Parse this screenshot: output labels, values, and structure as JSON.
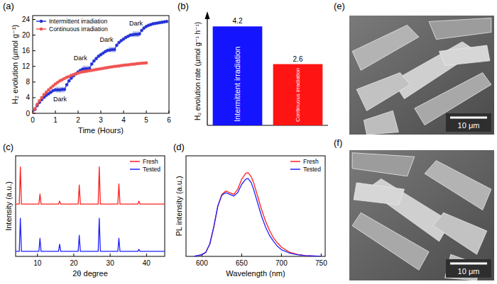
{
  "chart_data": [
    {
      "type": "line",
      "title": "(a)",
      "x_label": "Time (Hours)",
      "y_label": "H₂ evolution (μmol g⁻¹)",
      "x": [
        0,
        0.1,
        0.2,
        0.3,
        0.4,
        0.5,
        0.6,
        0.7,
        0.8,
        0.9,
        1,
        1.1,
        1.2,
        1.3,
        1.4,
        1.5,
        1.6,
        1.7,
        1.8,
        1.9,
        2,
        2.1,
        2.2,
        2.3,
        2.4,
        2.5,
        2.6,
        2.7,
        2.8,
        2.9,
        3,
        3.1,
        3.2,
        3.3,
        3.4,
        3.5,
        3.6,
        3.7,
        3.8,
        3.9,
        4,
        4.1,
        4.2,
        4.3,
        4.4,
        4.5,
        4.6,
        4.7,
        4.8,
        4.9,
        5,
        5.1,
        5.2,
        5.3,
        5.4,
        5.5,
        5.6,
        5.7,
        5.8,
        5.9
      ],
      "series": [
        {
          "name": "Intermittent irradiation",
          "color": "#2433d6",
          "marker": "circle",
          "values": [
            0,
            1.0,
            2.0,
            2.8,
            3.5,
            4.1,
            4.6,
            5.0,
            5.4,
            5.8,
            6.0,
            6.0,
            6.0,
            6.1,
            6.1,
            7.3,
            8.3,
            9.0,
            9.6,
            10.1,
            10.6,
            11.0,
            11.3,
            11.4,
            11.4,
            11.5,
            12.6,
            13.4,
            14.0,
            14.6,
            15.0,
            15.4,
            15.8,
            16.1,
            16.2,
            16.3,
            16.3,
            17.4,
            18.1,
            18.6,
            19.0,
            19.4,
            19.7,
            20.0,
            20.1,
            20.2,
            20.2,
            20.3,
            21.2,
            21.8,
            22.2,
            22.5,
            22.7,
            22.9,
            23.0,
            23.1,
            23.2,
            23.3,
            23.4,
            23.5
          ]
        },
        {
          "name": "Continuous irradiation",
          "color": "#ef5350",
          "marker": "circle",
          "values": [
            0,
            1.2,
            2.3,
            3.2,
            4.0,
            4.8,
            5.4,
            6.0,
            6.5,
            7.0,
            7.5,
            7.9,
            8.3,
            8.6,
            8.9,
            9.2,
            9.4,
            9.7,
            9.9,
            10.1,
            10.3,
            10.5,
            10.6,
            10.7,
            10.8,
            10.9,
            11.0,
            11.1,
            11.2,
            11.3,
            11.4,
            11.5,
            11.6,
            11.7,
            11.8,
            11.9,
            12.0,
            12.05,
            12.1,
            12.2,
            12.3,
            12.35,
            12.4,
            12.5,
            12.55,
            12.6,
            12.7,
            12.75,
            12.8,
            12.85,
            12.9,
            null,
            null,
            null,
            null,
            null,
            null,
            null,
            null,
            null
          ]
        }
      ],
      "xlim": [
        0,
        6
      ],
      "xticks": [
        0,
        1,
        2,
        3,
        4,
        5,
        6
      ],
      "ylim": [
        0,
        25
      ],
      "yticks": [
        0,
        4,
        8,
        12,
        16,
        20,
        24
      ],
      "legend": "upper left",
      "grid": false,
      "annotations": [
        {
          "text": "Dark",
          "x": 1.2,
          "y": 3.0
        },
        {
          "text": "Dark",
          "x": 2.1,
          "y": 13.6
        },
        {
          "text": "Dark",
          "x": 3.25,
          "y": 18.3
        },
        {
          "text": "Dark",
          "x": 4.55,
          "y": 22.4
        }
      ],
      "shaded": [
        {
          "x": [
            1.0,
            1.4
          ],
          "y": [
            5.3,
            6.8
          ]
        },
        {
          "x": [
            2.2,
            2.5
          ],
          "y": [
            10.7,
            12.2
          ]
        },
        {
          "x": [
            3.35,
            3.65
          ],
          "y": [
            15.6,
            17.0
          ]
        },
        {
          "x": [
            4.4,
            4.7
          ],
          "y": [
            19.5,
            21.0
          ]
        }
      ]
    },
    {
      "type": "bar",
      "title": "(b)",
      "y_label": "H₂ evolution rate (μmol g⁻¹ h⁻¹)",
      "categories": [
        "Intermittent irradiation",
        "Continuous irradiation"
      ],
      "values": [
        4.2,
        2.6
      ],
      "colors": [
        "#1414ff",
        "#ff1414"
      ],
      "ylim": [
        0,
        4.6
      ],
      "tick_labels": false,
      "data_labels": true,
      "grid": false
    },
    {
      "type": "line",
      "title": "(c)",
      "x_label": "2θ degree",
      "y_label": "Intensity (a.u.)",
      "x": [
        4,
        5.0,
        5.3,
        5.6,
        10.4,
        10.7,
        11.0,
        15.8,
        16.1,
        16.4,
        21.2,
        21.5,
        21.8,
        26.7,
        27.0,
        27.3,
        32.1,
        32.4,
        32.7,
        37.6,
        37.9,
        38.2,
        45
      ],
      "series": [
        {
          "name": "Fresh",
          "color": "#ff2020",
          "values": [
            5.2,
            5.2,
            8.9,
            5.2,
            5.2,
            6.2,
            5.2,
            5.2,
            5.5,
            5.2,
            5.2,
            7.1,
            5.2,
            5.2,
            8.9,
            5.2,
            5.2,
            7.2,
            5.2,
            5.2,
            5.5,
            5.2,
            5.2
          ]
        },
        {
          "name": "Tested",
          "color": "#2020ff",
          "values": [
            0.5,
            0.5,
            3.8,
            0.5,
            0.5,
            1.8,
            0.5,
            0.5,
            1.2,
            0.5,
            0.5,
            2.1,
            0.5,
            0.5,
            3.8,
            0.5,
            0.5,
            1.8,
            0.5,
            0.5,
            0.7,
            0.5,
            0.5
          ]
        }
      ],
      "xlim": [
        4,
        45
      ],
      "xticks": [
        10,
        20,
        30,
        40
      ],
      "ylim": [
        0,
        10
      ],
      "tick_labels": "x",
      "legend": "upper right",
      "grid": false
    },
    {
      "type": "line",
      "title": "(d)",
      "x_label": "Wavelength (nm)",
      "y_label": "PL intensity (a.u.)",
      "x": [
        590,
        600,
        605,
        610,
        615,
        620,
        625,
        630,
        635,
        640,
        645,
        650,
        655,
        658,
        662,
        665,
        670,
        675,
        680,
        685,
        690,
        695,
        700,
        710,
        720,
        730,
        740,
        750
      ],
      "series": [
        {
          "name": "Fresh",
          "color": "#ff2020",
          "values": [
            0,
            0.02,
            0.05,
            0.15,
            0.35,
            0.6,
            0.74,
            0.78,
            0.76,
            0.74,
            0.8,
            0.92,
            0.99,
            1.0,
            0.95,
            0.88,
            0.72,
            0.56,
            0.42,
            0.31,
            0.22,
            0.16,
            0.11,
            0.05,
            0.025,
            0.01,
            0.005,
            0
          ]
        },
        {
          "name": "Tested",
          "color": "#2020ff",
          "values": [
            0,
            0.02,
            0.05,
            0.15,
            0.36,
            0.6,
            0.73,
            0.76,
            0.74,
            0.72,
            0.76,
            0.86,
            0.92,
            0.93,
            0.88,
            0.8,
            0.64,
            0.48,
            0.35,
            0.25,
            0.18,
            0.12,
            0.08,
            0.04,
            0.02,
            0.01,
            0.005,
            0
          ]
        }
      ],
      "xlim": [
        580,
        755
      ],
      "xticks": [
        600,
        650,
        700,
        750
      ],
      "ylim": [
        0,
        1.2
      ],
      "tick_labels": "x",
      "legend": "upper right",
      "grid": false
    }
  ],
  "images": [
    {
      "label": "(e)",
      "scale_bar": "10 μm"
    },
    {
      "label": "(f)",
      "scale_bar": "10 μm"
    }
  ]
}
